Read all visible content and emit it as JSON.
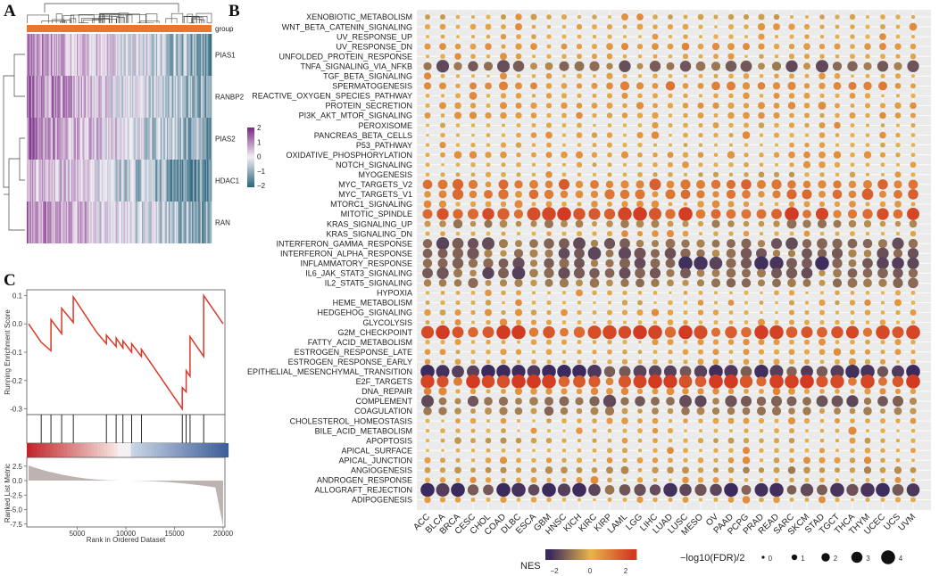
{
  "panel_labels": {
    "a": "A",
    "b": "B",
    "c": "C"
  },
  "heatmap": {
    "group_label": "group",
    "genes": [
      "PIAS1",
      "RANBP2",
      "PIAS2",
      "HDAC1",
      "RAN"
    ],
    "scale_ticks": [
      "2",
      "1",
      "0",
      "−1",
      "−2"
    ],
    "colors": {
      "high": "#7b2b86",
      "mid": "#f4eef5",
      "low": "#2f6a80",
      "group": "#e8762d"
    }
  },
  "chart_data": [
    {
      "type": "line",
      "title": "",
      "ylabel": "Running Enrichment Score",
      "xlabel": "Rank in Ordered Dataset",
      "ylim": [
        -0.32,
        0.12
      ],
      "yticks": [
        "0.1",
        "0.0",
        "-0.1",
        "-0.2",
        "-0.3"
      ],
      "xticks": [
        "5000",
        "10000",
        "15000",
        "20000"
      ],
      "x": [
        0,
        1300,
        2300,
        2300,
        3400,
        3400,
        4600,
        4600,
        7000,
        8000,
        8000,
        9000,
        9000,
        9700,
        9700,
        10600,
        10600,
        11600,
        11600,
        15800,
        15800,
        16200,
        16200,
        16600,
        16600,
        18000,
        18000,
        20000
      ],
      "y": [
        0.0,
        -0.065,
        -0.095,
        0.015,
        -0.035,
        0.055,
        0.005,
        0.095,
        -0.03,
        -0.07,
        -0.04,
        -0.08,
        -0.05,
        -0.085,
        -0.06,
        -0.1,
        -0.07,
        -0.115,
        -0.09,
        -0.3,
        -0.225,
        -0.24,
        -0.165,
        -0.185,
        -0.045,
        -0.115,
        0.1,
        0.0
      ],
      "hits": [
        1300,
        2300,
        3400,
        4600,
        8000,
        9000,
        9700,
        10600,
        11600,
        15800,
        16200,
        16600,
        18000
      ],
      "ranked_ylabel": "Ranked List Metric",
      "ranked_yticks": [
        "2.5",
        "0.0",
        "-2.5",
        "-5.0",
        "-7.5"
      ],
      "ranked_ylim": [
        -8,
        4
      ],
      "line_color": "#d93a2a"
    },
    {
      "type": "scatter",
      "title": "",
      "rows": [
        "XENOBIOTIC_METABOLISM",
        "WNT_BETA_CATENIN_SIGNALING",
        "UV_RESPONSE_UP",
        "UV_RESPONSE_DN",
        "UNFOLDED_PROTEIN_RESPONSE",
        "TNFA_SIGNALING_VIA_NFKB",
        "TGF_BETA_SIGNALING",
        "SPERMATOGENESIS",
        "REACTIVE_OXYGEN_SPECIES_PATHWAY",
        "PROTEIN_SECRETION",
        "PI3K_AKT_MTOR_SIGNALING",
        "PEROXISOME",
        "PANCREAS_BETA_CELLS",
        "P53_PATHWAY",
        "OXIDATIVE_PHOSPHORYLATION",
        "NOTCH_SIGNALING",
        "MYOGENESIS",
        "MYC_TARGETS_V2",
        "MYC_TARGETS_V1",
        "MTORC1_SIGNALING",
        "MITOTIC_SPINDLE",
        "KRAS_SIGNALING_UP",
        "KRAS_SIGNALING_DN",
        "INTERFERON_GAMMA_RESPONSE",
        "INTERFERON_ALPHA_RESPONSE",
        "INFLAMMATORY_RESPONSE",
        "IL6_JAK_STAT3_SIGNALING",
        "IL2_STAT5_SIGNALING",
        "HYPOXIA",
        "HEME_METABOLISM",
        "HEDGEHOG_SIGNALING",
        "GLYCOLYSIS",
        "G2M_CHECKPOINT",
        "FATTY_ACID_METABOLISM",
        "ESTROGEN_RESPONSE_LATE",
        "ESTROGEN_RESPONSE_EARLY",
        "EPITHELIAL_MESENCHYMAL_TRANSITION",
        "E2F_TARGETS",
        "DNA_REPAIR",
        "COMPLEMENT",
        "COAGULATION",
        "CHOLESTEROL_HOMEOSTASIS",
        "BILE_ACID_METABOLISM",
        "APOPTOSIS",
        "APICAL_SURFACE",
        "APICAL_JUNCTION",
        "ANGIOGENESIS",
        "ANDROGEN_RESPONSE",
        "ALLOGRAFT_REJECTION",
        "ADIPOGENESIS"
      ],
      "columns": [
        "ACC",
        "BLCA",
        "BRCA",
        "CESC",
        "CHOL",
        "COAD",
        "DLBC",
        "ESCA",
        "GBM",
        "HNSC",
        "KICH",
        "KIRC",
        "KIRP",
        "LAML",
        "LGG",
        "LIHC",
        "LUAD",
        "LUSC",
        "MESO",
        "OV",
        "PAAD",
        "PCPG",
        "PRAD",
        "READ",
        "SARC",
        "SKCM",
        "STAD",
        "TGCT",
        "THCA",
        "THYM",
        "UCEC",
        "UCS",
        "UVM"
      ],
      "row_profiles": {
        "XENOBIOTIC_METABOLISM": -0.3,
        "WNT_BETA_CATENIN_SIGNALING": 0.3,
        "UV_RESPONSE_UP": 0.1,
        "UV_RESPONSE_DN": 0.6,
        "UNFOLDED_PROTEIN_RESPONSE": 0.3,
        "TNFA_SIGNALING_VIA_NFKB": -1.4,
        "TGF_BETA_SIGNALING": 0.2,
        "SPERMATOGENESIS": 0.8,
        "REACTIVE_OXYGEN_SPECIES_PATHWAY": 0.3,
        "PROTEIN_SECRETION": 0.6,
        "PI3K_AKT_MTOR_SIGNALING": 0.4,
        "PEROXISOME": 0.1,
        "PANCREAS_BETA_CELLS": 0.2,
        "P53_PATHWAY": 0.2,
        "OXIDATIVE_PHOSPHORYLATION": 0.5,
        "NOTCH_SIGNALING": 0.1,
        "MYOGENESIS": -0.3,
        "MYC_TARGETS_V2": 1.2,
        "MYC_TARGETS_V1": 1.2,
        "MTORC1_SIGNALING": 0.5,
        "MITOTIC_SPINDLE": 1.8,
        "KRAS_SIGNALING_UP": -0.9,
        "KRAS_SIGNALING_DN": 0.3,
        "INTERFERON_GAMMA_RESPONSE": -1.6,
        "INTERFERON_ALPHA_RESPONSE": -1.4,
        "INFLAMMATORY_RESPONSE": -1.8,
        "IL6_JAK_STAT3_SIGNALING": -1.4,
        "IL2_STAT5_SIGNALING": -1.0,
        "HYPOXIA": 0.1,
        "HEME_METABOLISM": -0.2,
        "HEDGEHOG_SIGNALING": 0.4,
        "GLYCOLYSIS": 0.2,
        "G2M_CHECKPOINT": 2.0,
        "FATTY_ACID_METABOLISM": 0.3,
        "ESTROGEN_RESPONSE_LATE": 0.4,
        "ESTROGEN_RESPONSE_EARLY": 0.3,
        "EPITHELIAL_MESENCHYMAL_TRANSITION": -2.0,
        "E2F_TARGETS": 2.1,
        "DNA_REPAIR": 0.6,
        "COMPLEMENT": -1.4,
        "COAGULATION": -0.9,
        "CHOLESTEROL_HOMEOSTASIS": 0.4,
        "BILE_ACID_METABOLISM": 0.1,
        "APOPTOSIS": -0.3,
        "APICAL_SURFACE": 0.1,
        "APICAL_JUNCTION": 0.3,
        "ANGIOGENESIS": -0.6,
        "ANDROGEN_RESPONSE": 0.4,
        "ALLOGRAFT_REJECTION": -1.9,
        "ADIPOGENESIS": 0.3
      },
      "nes_legend": {
        "title": "NES",
        "ticks": [
          "−2",
          "0",
          "2"
        ],
        "range": [
          -2.5,
          2.5
        ]
      },
      "size_legend": {
        "title": "−log10(FDR)/2",
        "values": [
          "0",
          "1",
          "2",
          "3",
          "4"
        ]
      },
      "palette": {
        "neg": "#3b2a5e",
        "mid": "#e9b54a",
        "pos": "#d23a22"
      }
    }
  ]
}
